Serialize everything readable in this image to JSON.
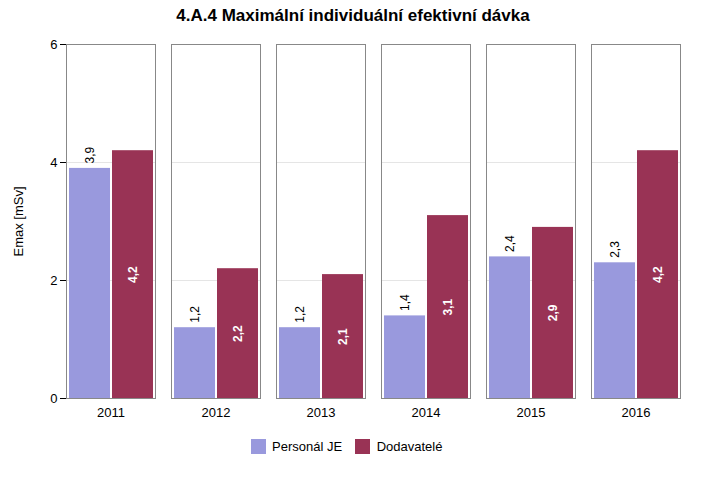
{
  "chart_data": {
    "type": "bar",
    "title": "4.A.4 Maximální individuální efektivní dávka",
    "ylabel": "Emax [mSv]",
    "categories": [
      "2011",
      "2012",
      "2013",
      "2014",
      "2015",
      "2016"
    ],
    "series": [
      {
        "name": "Personál JE",
        "color": "#9999dd",
        "values": [
          3.9,
          1.2,
          1.2,
          1.4,
          2.4,
          2.3
        ],
        "value_labels": [
          "3,9",
          "1,2",
          "1,2",
          "1,4",
          "2,4",
          "2,3"
        ]
      },
      {
        "name": "Dodavatelé",
        "color": "#993355",
        "values": [
          4.2,
          2.2,
          2.1,
          3.1,
          2.9,
          4.2
        ],
        "value_labels": [
          "4,2",
          "2,2",
          "2,1",
          "3,1",
          "2,9",
          "4,2"
        ]
      }
    ],
    "ylim": [
      0,
      6
    ],
    "yticks": [
      0,
      2,
      4,
      6
    ],
    "grid": true,
    "legend": "bottom",
    "data_labels": true
  }
}
